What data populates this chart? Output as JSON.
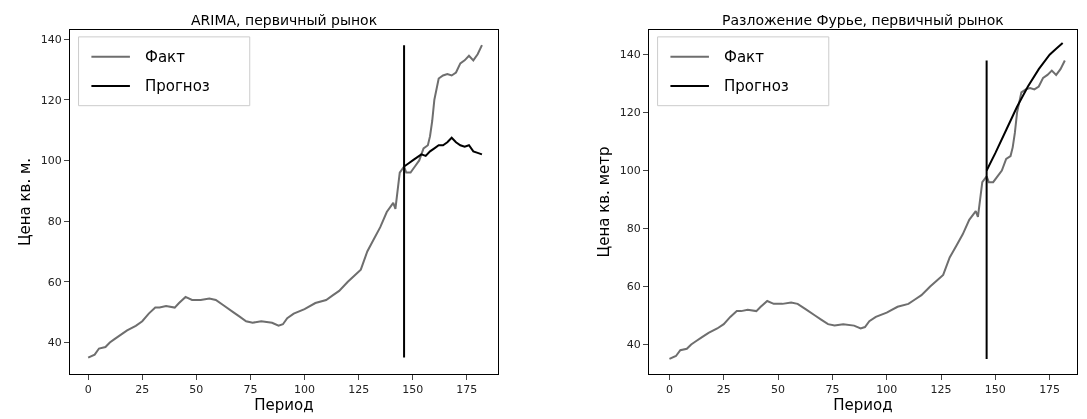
{
  "chart_data": [
    {
      "type": "line",
      "title": "ARIMA, первичный рынок",
      "xlabel": "Период",
      "ylabel": "Цена кв. м.",
      "xlim": [
        -8.4,
        189.4
      ],
      "xticks": [
        0,
        25,
        50,
        75,
        100,
        125,
        150,
        175
      ],
      "ylim": [
        29.6,
        143
      ],
      "yticks": [
        40,
        60,
        80,
        100,
        120,
        140
      ],
      "legend": "top left",
      "series": [
        {
          "name": "Факт",
          "color": "#6e6e6e",
          "x": [
            0,
            3,
            5,
            8,
            10,
            12,
            15,
            18,
            22,
            25,
            28,
            31,
            33,
            36,
            40,
            42,
            45,
            48,
            52,
            56,
            59,
            63,
            67,
            70,
            73,
            76,
            80,
            85,
            88,
            90,
            92,
            95,
            100,
            105,
            110,
            113,
            116,
            120,
            123,
            126,
            129,
            132,
            135,
            138,
            141,
            142,
            144,
            146,
            147,
            149,
            151,
            153,
            155,
            157,
            158,
            159,
            160,
            162,
            164,
            166,
            168,
            170,
            172,
            174,
            176,
            178,
            180,
            182
          ],
          "values": [
            35,
            36,
            38,
            38.5,
            40,
            41,
            42.5,
            44,
            45.5,
            47,
            49.5,
            51.5,
            51.5,
            52,
            51.5,
            53,
            55,
            54,
            54,
            54.5,
            54,
            52,
            50,
            48.5,
            47,
            46.5,
            47,
            46.5,
            45.5,
            46,
            48,
            49.5,
            51,
            53,
            54,
            55.5,
            57,
            60,
            62,
            64,
            70,
            74,
            78,
            83,
            86,
            84,
            96,
            98,
            96,
            96,
            98,
            100,
            104,
            105,
            108,
            113,
            120,
            127,
            128,
            128.5,
            128,
            129,
            132,
            133,
            134.5,
            133,
            135,
            138
          ]
        },
        {
          "name": "Прогноз",
          "color": "#000000",
          "x": [
            146,
            148,
            150,
            152,
            154,
            156,
            158,
            160,
            162,
            164,
            166,
            168,
            170,
            172,
            174,
            176,
            178,
            180,
            182
          ],
          "values": [
            98,
            99,
            100,
            101,
            102,
            101.5,
            103,
            104,
            105,
            105,
            106,
            107.5,
            106,
            105,
            104.5,
            105,
            103,
            102.5,
            102
          ]
        },
        {
          "color": "#000000",
          "x": [
            146,
            146
          ],
          "values": [
            35,
            138
          ]
        }
      ]
    },
    {
      "type": "line",
      "title": "Разложение Фурье, первичный рынок",
      "xlabel": "Период",
      "ylabel": "Цена кв. метр",
      "xlim": [
        -9.4,
        187.6
      ],
      "xticks": [
        0,
        25,
        50,
        75,
        100,
        125,
        150,
        175
      ],
      "ylim": [
        29.8,
        148.5
      ],
      "yticks": [
        40,
        60,
        80,
        100,
        120,
        140
      ],
      "legend": "top left",
      "series": [
        {
          "name": "Факт",
          "color": "#6e6e6e",
          "x": [
            0,
            3,
            5,
            8,
            10,
            12,
            15,
            18,
            22,
            25,
            28,
            31,
            33,
            36,
            40,
            42,
            45,
            48,
            52,
            56,
            59,
            63,
            67,
            70,
            73,
            76,
            80,
            85,
            88,
            90,
            92,
            95,
            100,
            105,
            110,
            113,
            116,
            120,
            123,
            126,
            129,
            132,
            135,
            138,
            141,
            142,
            144,
            146,
            147,
            149,
            151,
            153,
            155,
            157,
            158,
            159,
            160,
            162,
            164,
            166,
            168,
            170,
            172,
            174,
            176,
            178,
            180,
            182
          ],
          "values": [
            35,
            36,
            38,
            38.5,
            40,
            41,
            42.5,
            44,
            45.5,
            47,
            49.5,
            51.5,
            51.5,
            52,
            51.5,
            53,
            55,
            54,
            54,
            54.5,
            54,
            52,
            50,
            48.5,
            47,
            46.5,
            47,
            46.5,
            45.5,
            46,
            48,
            49.5,
            51,
            53,
            54,
            55.5,
            57,
            60,
            62,
            64,
            70,
            74,
            78,
            83,
            86,
            84,
            96,
            98,
            96,
            96,
            98,
            100,
            104,
            105,
            108,
            113,
            120,
            127,
            128,
            128.5,
            128,
            129,
            132,
            133,
            134.5,
            133,
            135,
            138
          ]
        },
        {
          "name": "Прогноз",
          "color": "#000000",
          "x": [
            146,
            150,
            155,
            160,
            165,
            170,
            175,
            178,
            181
          ],
          "values": [
            100,
            106,
            114,
            122,
            129,
            135,
            140,
            142,
            144
          ]
        },
        {
          "color": "#000000",
          "x": [
            146,
            146
          ],
          "values": [
            35,
            138
          ]
        }
      ]
    }
  ]
}
